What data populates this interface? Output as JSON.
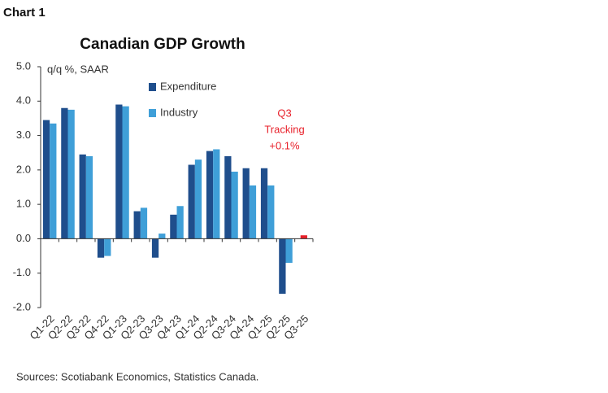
{
  "label": "Chart 1",
  "chart_data": {
    "type": "bar",
    "title": "Canadian GDP Growth",
    "y_label": "q/q %, SAAR",
    "source": "Sources: Scotiabank Economics, Statistics Canada.",
    "categories": [
      "Q1-22",
      "Q2-22",
      "Q3-22",
      "Q4-22",
      "Q1-23",
      "Q2-23",
      "Q3-23",
      "Q4-23",
      "Q1-24",
      "Q2-24",
      "Q3-24",
      "Q4-24",
      "Q1-25",
      "Q2-25",
      "Q3-25"
    ],
    "series": [
      {
        "name": "Expenditure",
        "color": "#1f4e8c",
        "values": [
          3.45,
          3.8,
          2.45,
          -0.55,
          3.9,
          0.8,
          -0.55,
          0.7,
          2.15,
          2.55,
          2.4,
          2.05,
          2.05,
          -1.6,
          null
        ]
      },
      {
        "name": "Industry",
        "color": "#3f9fd8",
        "values": [
          3.35,
          3.75,
          2.4,
          -0.5,
          3.85,
          0.9,
          0.15,
          0.95,
          2.3,
          2.6,
          1.95,
          1.55,
          1.55,
          -0.7,
          null
        ]
      }
    ],
    "tracking": {
      "value": 0.1,
      "color": "#e8202a",
      "label": [
        "Q3",
        "Tracking",
        "+0.1%"
      ]
    },
    "ylim": [
      -2,
      5
    ],
    "yticks": [
      {
        "value": -2,
        "label": "-2.0"
      },
      {
        "value": -1,
        "label": "-1.0"
      },
      {
        "value": 0,
        "label": "0.0"
      },
      {
        "value": 1,
        "label": "1.0"
      },
      {
        "value": 2,
        "label": "2.0"
      },
      {
        "value": 3,
        "label": "3.0"
      },
      {
        "value": 4,
        "label": "4.0"
      },
      {
        "value": 5,
        "label": "5.0"
      }
    ]
  }
}
